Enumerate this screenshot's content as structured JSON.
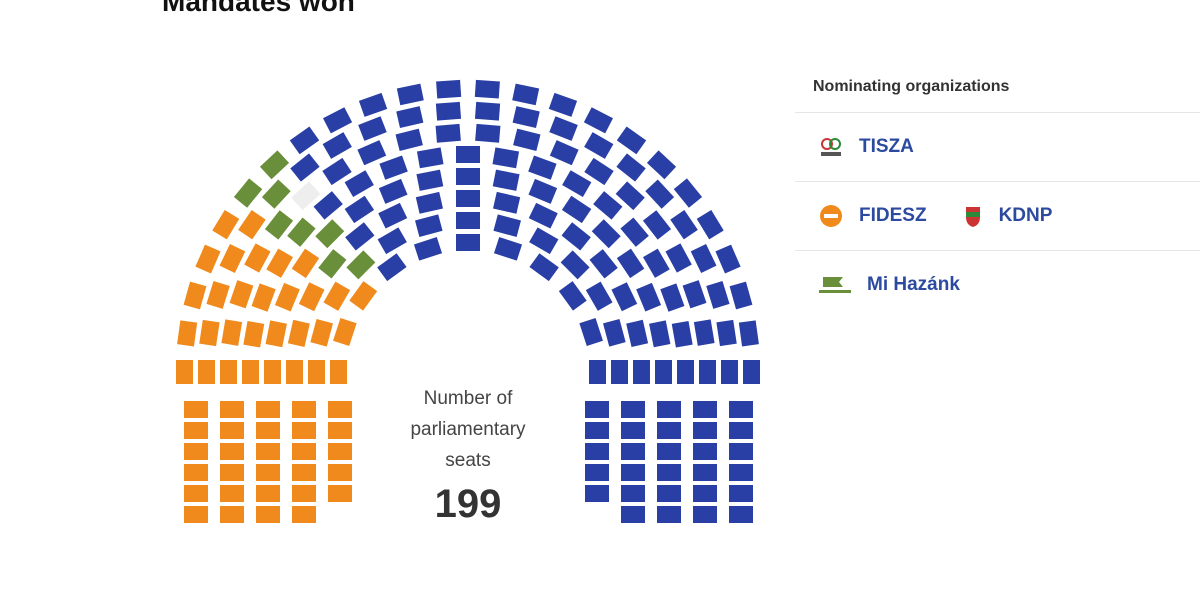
{
  "chart_data": {
    "type": "parliament",
    "title": "Mandates won",
    "center_label": "Number of parliamentary seats",
    "total_seats": 199,
    "legend_title": "Nominating organizations",
    "series": [
      {
        "name": "FIDESZ",
        "partner": "KDNP",
        "color": "#f08a1c",
        "values": [
          60
        ]
      },
      {
        "name": "Mi Hazánk",
        "color": "#6a8f3a",
        "values": [
          8
        ]
      },
      {
        "color": "#eeeeee",
        "values": [
          1
        ]
      },
      {
        "name": "TISZA",
        "color": "#2a3fa5",
        "values": [
          130
        ]
      }
    ]
  }
}
